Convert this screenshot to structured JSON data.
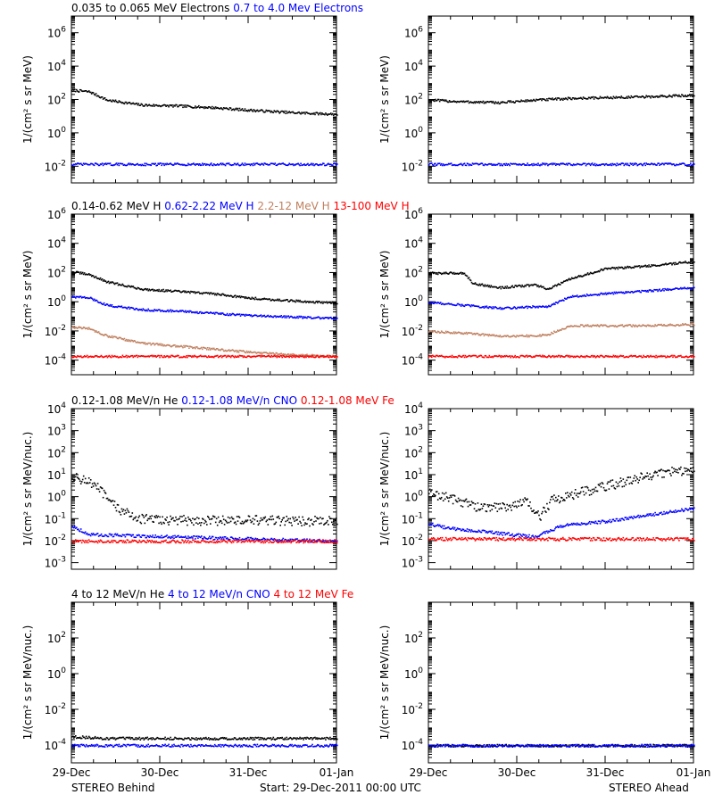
{
  "colors": {
    "black": "#000000",
    "blue": "#0000ff",
    "tan": "#c08060",
    "red": "#ff0000"
  },
  "footer": {
    "left": "STEREO Behind",
    "center": "Start: 29-Dec-2011 00:00 UTC",
    "right": "STEREO Ahead"
  },
  "chart_data": [
    {
      "type": "scatter",
      "row": 0,
      "side": "behind",
      "header": [
        {
          "text": "0.035 to 0.065 MeV Electrons",
          "color": "black"
        },
        {
          "text": "0.7 to 4.0 Mev Electrons",
          "color": "blue"
        }
      ],
      "ylabel": "1/(cm² s sr MeV)",
      "yscale": "log",
      "ylim": [
        -3,
        7
      ],
      "yticks": [
        -2,
        0,
        2,
        4,
        6
      ],
      "x": [
        "29-Dec",
        "30-Dec",
        "31-Dec",
        "01-Jan"
      ],
      "xlim": [
        0,
        3
      ],
      "series": [
        {
          "color": "black",
          "values": [
            [
              0,
              2.6
            ],
            [
              0.2,
              2.5
            ],
            [
              0.4,
              2.0
            ],
            [
              0.8,
              1.7
            ],
            [
              1.2,
              1.65
            ],
            [
              1.6,
              1.55
            ],
            [
              2.0,
              1.4
            ],
            [
              2.5,
              1.25
            ],
            [
              3.0,
              1.15
            ]
          ]
        },
        {
          "color": "blue",
          "values": [
            [
              0,
              -1.85
            ],
            [
              3.0,
              -1.85
            ]
          ]
        }
      ]
    },
    {
      "type": "scatter",
      "row": 0,
      "side": "ahead",
      "ylabel": "1/(cm² s sr MeV)",
      "yscale": "log",
      "ylim": [
        -3,
        7
      ],
      "yticks": [
        -2,
        0,
        2,
        4,
        6
      ],
      "x": [
        "29-Dec",
        "30-Dec",
        "31-Dec",
        "01-Jan"
      ],
      "xlim": [
        0,
        3
      ],
      "series": [
        {
          "color": "black",
          "values": [
            [
              0,
              2.0
            ],
            [
              0.4,
              1.9
            ],
            [
              0.8,
              1.85
            ],
            [
              1.2,
              2.0
            ],
            [
              1.6,
              2.1
            ],
            [
              2.0,
              2.15
            ],
            [
              2.5,
              2.2
            ],
            [
              3.0,
              2.3
            ]
          ]
        },
        {
          "color": "blue",
          "values": [
            [
              0,
              -1.85
            ],
            [
              3.0,
              -1.85
            ]
          ]
        }
      ]
    },
    {
      "type": "scatter",
      "row": 1,
      "side": "behind",
      "header": [
        {
          "text": "0.14-0.62 MeV H",
          "color": "black"
        },
        {
          "text": "0.62-2.22 MeV H",
          "color": "blue"
        },
        {
          "text": "2.2-12 MeV H",
          "color": "tan"
        },
        {
          "text": "13-100 MeV H",
          "color": "red"
        }
      ],
      "ylabel": "1/(cm² s sr MeV)",
      "yscale": "log",
      "ylim": [
        -5,
        6
      ],
      "yticks": [
        -4,
        -2,
        0,
        2,
        4,
        6
      ],
      "x": [
        "29-Dec",
        "30-Dec",
        "31-Dec",
        "01-Jan"
      ],
      "xlim": [
        0,
        3
      ],
      "series": [
        {
          "color": "black",
          "values": [
            [
              0,
              2.1
            ],
            [
              0.2,
              1.9
            ],
            [
              0.4,
              1.4
            ],
            [
              0.8,
              0.9
            ],
            [
              1.2,
              0.75
            ],
            [
              1.6,
              0.6
            ],
            [
              2.0,
              0.3
            ],
            [
              2.5,
              0.1
            ],
            [
              3.0,
              -0.05
            ]
          ]
        },
        {
          "color": "blue",
          "values": [
            [
              0,
              0.4
            ],
            [
              0.2,
              0.3
            ],
            [
              0.4,
              -0.2
            ],
            [
              0.8,
              -0.5
            ],
            [
              1.2,
              -0.6
            ],
            [
              1.6,
              -0.75
            ],
            [
              2.0,
              -0.9
            ],
            [
              2.5,
              -1.0
            ],
            [
              3.0,
              -1.1
            ]
          ]
        },
        {
          "color": "tan",
          "values": [
            [
              0,
              -1.7
            ],
            [
              0.2,
              -1.8
            ],
            [
              0.4,
              -2.3
            ],
            [
              0.8,
              -2.8
            ],
            [
              1.2,
              -3.0
            ],
            [
              1.6,
              -3.2
            ],
            [
              2.0,
              -3.4
            ],
            [
              2.5,
              -3.6
            ],
            [
              3.0,
              -3.7
            ]
          ]
        },
        {
          "color": "red",
          "values": [
            [
              0,
              -3.7
            ],
            [
              3.0,
              -3.7
            ]
          ]
        }
      ]
    },
    {
      "type": "scatter",
      "row": 1,
      "side": "ahead",
      "ylabel": "1/(cm² s sr MeV)",
      "yscale": "log",
      "ylim": [
        -5,
        6
      ],
      "yticks": [
        -4,
        -2,
        0,
        2,
        4,
        6
      ],
      "x": [
        "29-Dec",
        "30-Dec",
        "31-Dec",
        "01-Jan"
      ],
      "xlim": [
        0,
        3
      ],
      "series": [
        {
          "color": "black",
          "values": [
            [
              0,
              2.0
            ],
            [
              0.4,
              2.0
            ],
            [
              0.5,
              1.3
            ],
            [
              0.8,
              1.0
            ],
            [
              1.2,
              1.2
            ],
            [
              1.35,
              0.9
            ],
            [
              1.6,
              1.6
            ],
            [
              2.0,
              2.3
            ],
            [
              2.5,
              2.5
            ],
            [
              3.0,
              2.8
            ]
          ]
        },
        {
          "color": "blue",
          "values": [
            [
              0,
              0.0
            ],
            [
              0.4,
              -0.2
            ],
            [
              0.8,
              -0.4
            ],
            [
              1.2,
              -0.3
            ],
            [
              1.35,
              -0.3
            ],
            [
              1.6,
              0.4
            ],
            [
              2.0,
              0.6
            ],
            [
              2.5,
              0.8
            ],
            [
              3.0,
              1.0
            ]
          ]
        },
        {
          "color": "tan",
          "values": [
            [
              0,
              -2.0
            ],
            [
              0.4,
              -2.1
            ],
            [
              0.8,
              -2.3
            ],
            [
              1.2,
              -2.3
            ],
            [
              1.35,
              -2.2
            ],
            [
              1.6,
              -1.6
            ],
            [
              2.0,
              -1.6
            ],
            [
              2.5,
              -1.6
            ],
            [
              3.0,
              -1.5
            ]
          ]
        },
        {
          "color": "red",
          "values": [
            [
              0,
              -3.7
            ],
            [
              3.0,
              -3.7
            ]
          ]
        }
      ]
    },
    {
      "type": "scatter",
      "row": 2,
      "side": "behind",
      "header": [
        {
          "text": "0.12-1.08 MeV/n He",
          "color": "black"
        },
        {
          "text": "0.12-1.08 MeV/n CNO",
          "color": "blue"
        },
        {
          "text": "0.12-1.08 MeV Fe",
          "color": "red"
        }
      ],
      "ylabel": "1/(cm² s sr MeV/nuc.)",
      "yscale": "log",
      "ylim": [
        -3.3,
        4
      ],
      "yticks": [
        -3,
        -2,
        -1,
        0,
        1,
        2,
        3,
        4
      ],
      "x": [
        "29-Dec",
        "30-Dec",
        "31-Dec",
        "01-Jan"
      ],
      "xlim": [
        0,
        3
      ],
      "series": [
        {
          "color": "black",
          "values": [
            [
              0,
              0.9
            ],
            [
              0.15,
              0.8
            ],
            [
              0.3,
              0.4
            ],
            [
              0.45,
              -0.3
            ],
            [
              0.6,
              -0.7
            ],
            [
              0.8,
              -1.0
            ],
            [
              1.2,
              -1.05
            ],
            [
              2.0,
              -1.05
            ],
            [
              3.0,
              -1.1
            ]
          ]
        },
        {
          "color": "blue",
          "values": [
            [
              0,
              -1.3
            ],
            [
              0.2,
              -1.7
            ],
            [
              3.0,
              -2.0
            ]
          ]
        },
        {
          "color": "red",
          "values": [
            [
              0,
              -2.0
            ],
            [
              3.0,
              -2.0
            ]
          ]
        }
      ]
    },
    {
      "type": "scatter",
      "row": 2,
      "side": "ahead",
      "ylabel": "1/(cm² s sr MeV/nuc.)",
      "yscale": "log",
      "ylim": [
        -3.3,
        4
      ],
      "yticks": [
        -3,
        -2,
        -1,
        0,
        1,
        2,
        3,
        4
      ],
      "x": [
        "29-Dec",
        "30-Dec",
        "31-Dec",
        "01-Jan"
      ],
      "xlim": [
        0,
        3
      ],
      "series": [
        {
          "color": "black",
          "values": [
            [
              0,
              0.2
            ],
            [
              0.3,
              -0.1
            ],
            [
              0.6,
              -0.5
            ],
            [
              0.9,
              -0.4
            ],
            [
              1.1,
              -0.2
            ],
            [
              1.25,
              -0.9
            ],
            [
              1.4,
              -0.1
            ],
            [
              1.7,
              0.2
            ],
            [
              2.0,
              0.5
            ],
            [
              2.5,
              1.0
            ],
            [
              3.0,
              1.3
            ]
          ]
        },
        {
          "color": "blue",
          "values": [
            [
              0,
              -1.2
            ],
            [
              0.2,
              -1.4
            ],
            [
              1.2,
              -1.8
            ],
            [
              1.5,
              -1.3
            ],
            [
              2.0,
              -1.1
            ],
            [
              2.5,
              -0.8
            ],
            [
              3.0,
              -0.5
            ]
          ]
        },
        {
          "color": "red",
          "values": [
            [
              0,
              -1.9
            ],
            [
              3.0,
              -1.9
            ]
          ]
        }
      ]
    },
    {
      "type": "scatter",
      "row": 3,
      "side": "behind",
      "header": [
        {
          "text": "4 to 12 MeV/n He",
          "color": "black"
        },
        {
          "text": "4 to 12 MeV/n CNO",
          "color": "blue"
        },
        {
          "text": "4 to 12 MeV Fe",
          "color": "red"
        }
      ],
      "ylabel": "1/(cm² s sr MeV/nuc.)",
      "yscale": "log",
      "ylim": [
        -5,
        4
      ],
      "yticks": [
        -4,
        -2,
        0,
        2
      ],
      "x": [
        "29-Dec",
        "30-Dec",
        "31-Dec",
        "01-Jan"
      ],
      "xlim": [
        0,
        3
      ],
      "series": [
        {
          "color": "black",
          "values": [
            [
              0,
              -3.5
            ],
            [
              0.4,
              -3.6
            ],
            [
              3.0,
              -3.6
            ]
          ]
        },
        {
          "color": "blue",
          "values": [
            [
              0,
              -4.0
            ],
            [
              3.0,
              -4.0
            ]
          ]
        }
      ]
    },
    {
      "type": "scatter",
      "row": 3,
      "side": "ahead",
      "ylabel": "1/(cm² s sr MeV/nuc.)",
      "yscale": "log",
      "ylim": [
        -5,
        4
      ],
      "yticks": [
        -4,
        -2,
        0,
        2
      ],
      "x": [
        "29-Dec",
        "30-Dec",
        "31-Dec",
        "01-Jan"
      ],
      "xlim": [
        0,
        3
      ],
      "series": [
        {
          "color": "black",
          "values": [
            [
              0,
              -4.0
            ],
            [
              3.0,
              -4.0
            ]
          ]
        },
        {
          "color": "blue",
          "values": [
            [
              0,
              -4.0
            ],
            [
              3.0,
              -4.0
            ]
          ]
        }
      ]
    }
  ]
}
